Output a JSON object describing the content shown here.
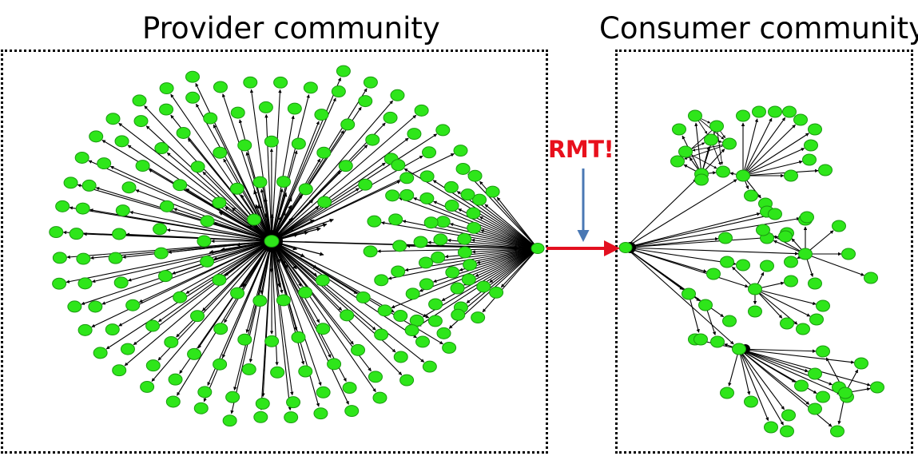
{
  "provider": {
    "title": "Provider community"
  },
  "consumer": {
    "title": "Consumer community"
  },
  "annotation": {
    "label": "RMT!"
  },
  "colors": {
    "node_fill": "#2ee61a",
    "node_stroke": "#1a9a10",
    "edge": "#000000",
    "migration_arrow": "#e31020",
    "pointer_arrow": "#4a78b4",
    "annotation": "#e8101c"
  }
}
